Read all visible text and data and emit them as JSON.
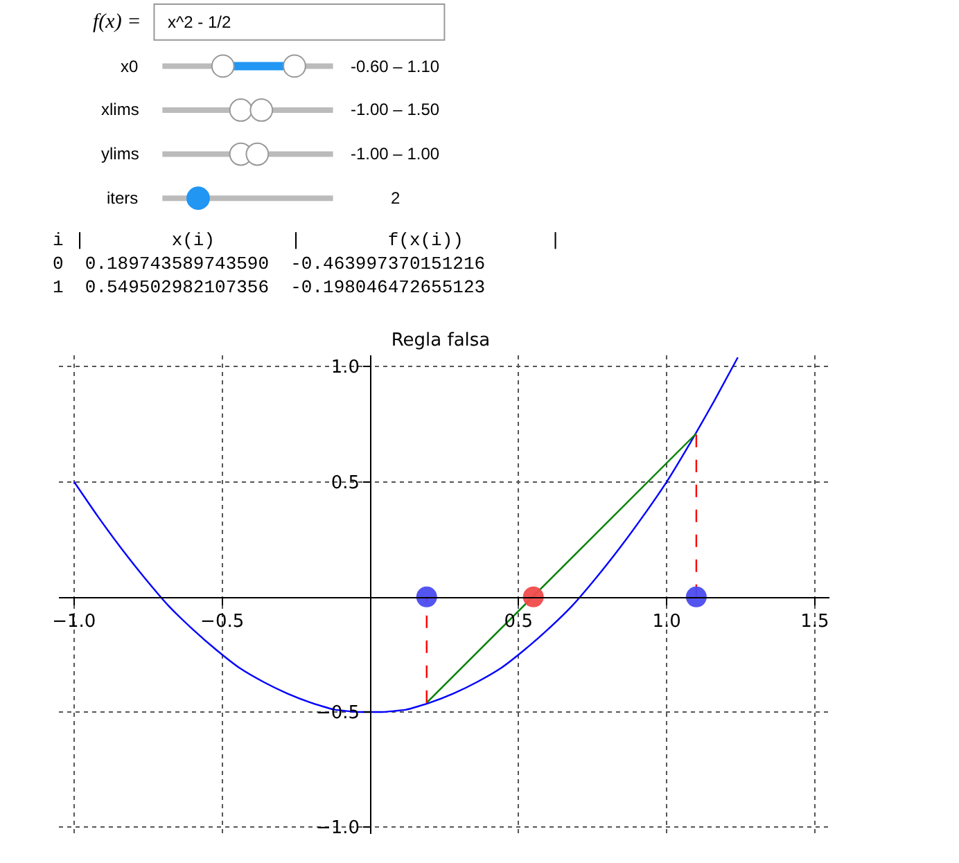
{
  "chart_data": {
    "type": "line",
    "title": "Regla falsa",
    "annotations": [
      "f(x) =",
      "x^2 - 1/2",
      "x0",
      "-0.60 – 1.10",
      "xlims",
      "-1.00 – 1.50",
      "ylims",
      "-1.00 – 1.00",
      "iters",
      "2",
      "i |        x(i)       |        f(x(i))        |",
      "0  0.189743589743590  -0.463997370151216",
      "1  0.549502982107356  -0.198046472655123"
    ],
    "xlim": [
      -1.05,
      1.55
    ],
    "ylim": [
      -1.03,
      1.05
    ],
    "xticks": [
      {
        "value": -1.0,
        "label": "−1.0"
      },
      {
        "value": -0.5,
        "label": "−0.5"
      },
      {
        "value": 0.5,
        "label": "0.5"
      },
      {
        "value": 1.0,
        "label": "1.0"
      },
      {
        "value": 1.5,
        "label": "1.5"
      }
    ],
    "yticks": [
      {
        "value": -1.0,
        "label": "−1.0"
      },
      {
        "value": -0.5,
        "label": "−0.5"
      },
      {
        "value": 0.5,
        "label": "0.5"
      },
      {
        "value": 1.0,
        "label": "1.0"
      }
    ],
    "grid": true,
    "series": [
      {
        "color": "#0000ff",
        "line_style": "solid",
        "x": [
          -1.0,
          -0.92,
          -0.84,
          -0.76,
          -0.68,
          -0.6,
          -0.52,
          -0.44,
          -0.36,
          -0.28,
          -0.2,
          -0.12,
          -0.04,
          0.0,
          0.04,
          0.12,
          0.2,
          0.28,
          0.36,
          0.44,
          0.52,
          0.6,
          0.68,
          0.76,
          0.84,
          0.92,
          1.0,
          1.08,
          1.16,
          1.24
        ],
        "values": [
          0.5,
          0.35,
          0.21,
          0.08,
          -0.04,
          -0.14,
          -0.23,
          -0.31,
          -0.37,
          -0.42,
          -0.46,
          -0.49,
          -0.5,
          -0.5,
          -0.5,
          -0.49,
          -0.46,
          -0.42,
          -0.37,
          -0.31,
          -0.23,
          -0.14,
          -0.04,
          0.08,
          0.21,
          0.35,
          0.5,
          0.67,
          0.85,
          1.04
        ]
      },
      {
        "color": "#008000",
        "line_style": "solid",
        "x": [
          0.19,
          1.1
        ],
        "values": [
          -0.46,
          0.71
        ]
      },
      {
        "color": "#ff0000",
        "line_style": "dashed",
        "x": [
          0.19,
          0.19
        ],
        "values": [
          -0.46,
          0.0
        ]
      },
      {
        "color": "#ff0000",
        "line_style": "dashed",
        "x": [
          1.1,
          1.1
        ],
        "values": [
          0.0,
          0.71
        ]
      },
      {
        "type": "scatter",
        "color": "#4b4bf0",
        "marker": "circle",
        "x": [
          0.19,
          1.1
        ],
        "values": [
          0.0,
          0.0
        ]
      },
      {
        "type": "scatter",
        "color": "#f04b4b",
        "marker": "circle",
        "x": [
          0.55
        ],
        "values": [
          0.0
        ]
      }
    ]
  }
}
